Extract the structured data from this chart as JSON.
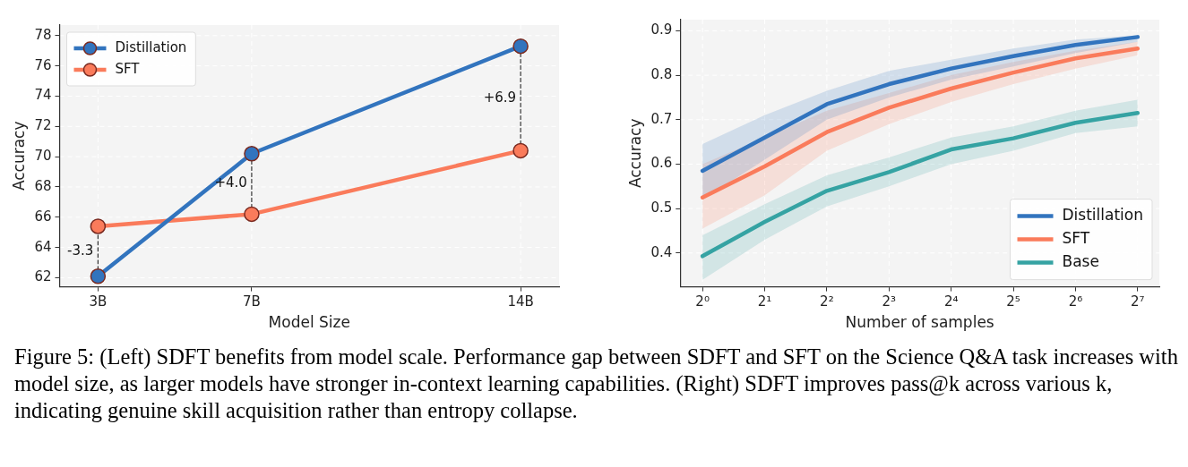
{
  "chart_data": [
    {
      "type": "line",
      "xlabel": "Model Size",
      "ylabel": "Accuracy",
      "x": [
        3,
        7,
        14
      ],
      "xlim": [
        2,
        15
      ],
      "xticks": [
        {
          "value": 3,
          "label": "3B"
        },
        {
          "value": 7,
          "label": "7B"
        },
        {
          "value": 14,
          "label": "14B"
        }
      ],
      "ylim": [
        61.4,
        78.7
      ],
      "yticks": [
        62,
        64,
        66,
        68,
        70,
        72,
        74,
        76,
        78
      ],
      "grid": true,
      "legend": "top left",
      "marker": "circle",
      "series": [
        {
          "name": "Distillation",
          "color": "#3274be",
          "values": [
            62.1,
            70.2,
            77.3
          ]
        },
        {
          "name": "SFT",
          "color": "#fa7b5b",
          "values": [
            65.4,
            66.2,
            70.4
          ]
        },
        {
          "type": "line",
          "color": "#333333",
          "line_style": "dashed",
          "marker": "none",
          "x": [
            3,
            3
          ],
          "values": [
            62.1,
            65.4
          ]
        },
        {
          "type": "line",
          "color": "#333333",
          "line_style": "dashed",
          "marker": "none",
          "x": [
            7,
            7
          ],
          "values": [
            66.2,
            70.2
          ]
        },
        {
          "type": "line",
          "color": "#333333",
          "line_style": "dashed",
          "marker": "none",
          "x": [
            14,
            14
          ],
          "values": [
            70.4,
            77.3
          ]
        }
      ],
      "annotations": [
        {
          "text": "-3.3",
          "x": 3,
          "y": 63.75
        },
        {
          "text": "+4.0",
          "x": 7,
          "y": 68.2
        },
        {
          "text": "+6.9",
          "x": 14,
          "y": 73.85
        }
      ]
    },
    {
      "type": "line",
      "xlabel": "Number of samples",
      "ylabel": "Accuracy",
      "x": [
        1,
        2,
        4,
        8,
        16,
        32,
        64,
        128
      ],
      "log": "x",
      "xlim": [
        0.78,
        163
      ],
      "xticks": [
        {
          "value": 1,
          "label": "2⁰"
        },
        {
          "value": 2,
          "label": "2¹"
        },
        {
          "value": 4,
          "label": "2²"
        },
        {
          "value": 8,
          "label": "2³"
        },
        {
          "value": 16,
          "label": "2⁴"
        },
        {
          "value": 32,
          "label": "2⁵"
        },
        {
          "value": 64,
          "label": "2⁶"
        },
        {
          "value": 128,
          "label": "2⁷"
        }
      ],
      "ylim": [
        0.324,
        0.925
      ],
      "yticks": [
        0.4,
        0.5,
        0.6,
        0.7,
        0.8,
        0.9
      ],
      "grid": true,
      "legend": "bottom right",
      "marker": "none",
      "series": [
        {
          "name": "Distillation",
          "color": "#3274be",
          "values": [
            0.585,
            0.66,
            0.735,
            0.78,
            0.815,
            0.843,
            0.868,
            0.886
          ],
          "lower": [
            0.52,
            0.61,
            0.7,
            0.75,
            0.79,
            0.82,
            0.85,
            0.875
          ],
          "upper": [
            0.645,
            0.71,
            0.765,
            0.81,
            0.835,
            0.86,
            0.88,
            0.89
          ]
        },
        {
          "name": "SFT",
          "color": "#fa7b5b",
          "values": [
            0.525,
            0.595,
            0.672,
            0.727,
            0.77,
            0.806,
            0.838,
            0.86
          ],
          "lower": [
            0.455,
            0.53,
            0.63,
            0.69,
            0.74,
            0.78,
            0.815,
            0.845
          ],
          "upper": [
            0.6,
            0.66,
            0.72,
            0.76,
            0.8,
            0.83,
            0.855,
            0.875
          ]
        },
        {
          "name": "Base",
          "color": "#35a3a3",
          "values": [
            0.393,
            0.47,
            0.54,
            0.582,
            0.633,
            0.658,
            0.693,
            0.715
          ],
          "lower": [
            0.34,
            0.43,
            0.505,
            0.55,
            0.6,
            0.63,
            0.67,
            0.685
          ],
          "upper": [
            0.44,
            0.51,
            0.575,
            0.615,
            0.66,
            0.685,
            0.72,
            0.745
          ]
        }
      ],
      "annotations": [
        "Figure 5: (Left) SDFT benefits from model scale. Performance gap between SDFT and SFT on the Science Q&A task increases with model size, as larger models have stronger in-context learning capabilities. (Right) SDFT improves pass@k across various k, indicating genuine skill acquisition rather than entropy collapse."
      ]
    }
  ]
}
